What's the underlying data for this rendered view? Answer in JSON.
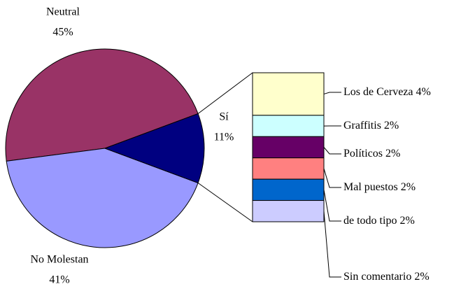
{
  "chart_data": {
    "type": "pie-of-bar",
    "categories": [
      "Neutral",
      "No Molestan",
      "Sí"
    ],
    "values": [
      45,
      41,
      11
    ],
    "value_labels": [
      "45%",
      "41%",
      "11%"
    ],
    "colors": [
      "#993366",
      "#9999ff",
      "#000080"
    ],
    "breakdown": {
      "categories": [
        "Los de Cerveza",
        "Graffitis",
        "Políticos",
        "Mal puestos",
        "de todo tipo",
        "Sin comentario"
      ],
      "values": [
        4,
        2,
        2,
        2,
        2,
        2
      ],
      "value_labels": [
        "4%",
        "2%",
        "2%",
        "2%",
        "2%",
        "2%"
      ],
      "colors": [
        "#ffffcc",
        "#ccffff",
        "#660066",
        "#ff8080",
        "#0066cc",
        "#ccccff"
      ]
    }
  }
}
